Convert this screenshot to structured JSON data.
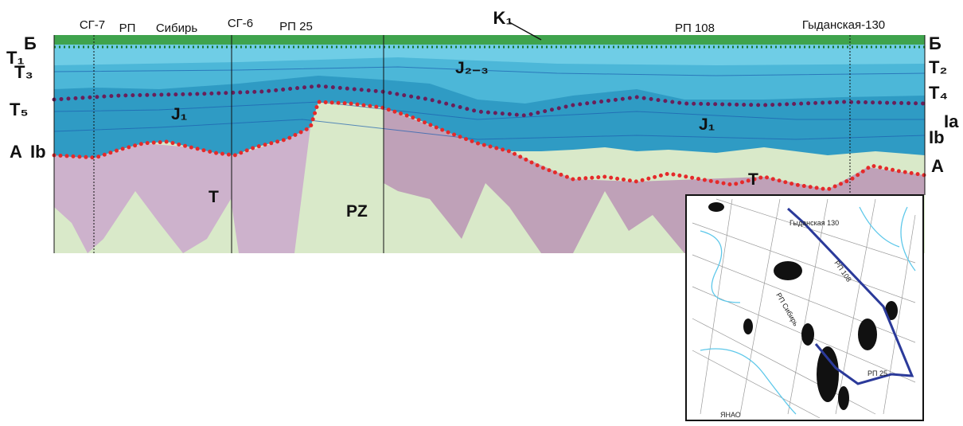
{
  "top_labels": [
    "СГ-7",
    "РП",
    "Сибирь",
    "СГ-6",
    "РП 25",
    "K₁",
    "РП 108",
    "Гыданская-130"
  ],
  "left_labels": [
    "Б",
    "T₁",
    "T₃",
    "T₅",
    "A",
    "Ib"
  ],
  "right_labels": [
    "Б",
    "T₂",
    "T₄",
    "Ia",
    "Ib",
    "A"
  ],
  "inner_labels": [
    "J₂₋₃",
    "J₁",
    "J₁",
    "T",
    "T",
    "PZ"
  ],
  "map_labels": [
    "Гыданская 130",
    "РП 108",
    "РП Сибирь",
    "РП 25",
    "ЯНАО"
  ]
}
